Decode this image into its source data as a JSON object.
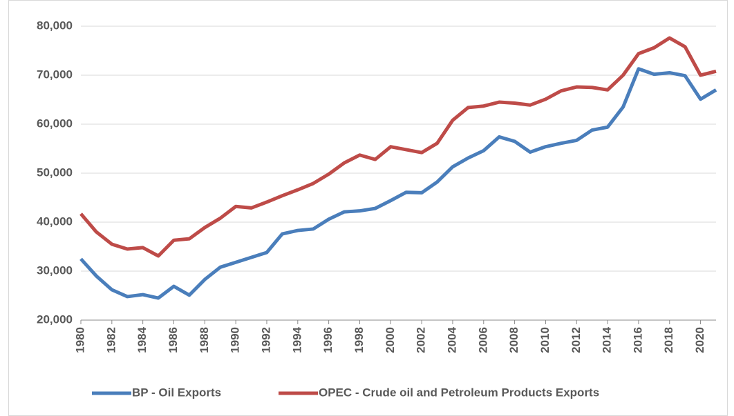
{
  "chart_data": {
    "type": "line",
    "x": [
      1980,
      1981,
      1982,
      1983,
      1984,
      1985,
      1986,
      1987,
      1988,
      1989,
      1990,
      1991,
      1992,
      1993,
      1994,
      1995,
      1996,
      1997,
      1998,
      1999,
      2000,
      2001,
      2002,
      2003,
      2004,
      2005,
      2006,
      2007,
      2008,
      2009,
      2010,
      2011,
      2012,
      2013,
      2014,
      2015,
      2016,
      2017,
      2018,
      2019,
      2020,
      2021
    ],
    "series": [
      {
        "name": "BP - Oil Exports",
        "color": "#4a7ebb",
        "values": [
          32500,
          29000,
          26200,
          24800,
          25200,
          24500,
          26900,
          25100,
          28300,
          30800,
          31800,
          32800,
          33800,
          37600,
          38300,
          38600,
          40600,
          42100,
          42300,
          42800,
          44400,
          46100,
          46000,
          48200,
          51300,
          53100,
          54600,
          57400,
          56500,
          54300,
          55400,
          56100,
          56700,
          58800,
          59400,
          63500,
          71300,
          70200,
          70500,
          69900,
          65100,
          67000
        ]
      },
      {
        "name": "OPEC - Crude oil and Petroleum Products Exports",
        "color": "#be4b48",
        "values": [
          41700,
          38000,
          35500,
          34500,
          34800,
          33100,
          36300,
          36600,
          38900,
          40800,
          43200,
          42900,
          44100,
          45400,
          46600,
          47900,
          49800,
          52100,
          53700,
          52800,
          55400,
          54800,
          54200,
          56100,
          60800,
          63400,
          63700,
          64500,
          64300,
          63900,
          65100,
          66800,
          67600,
          67500,
          67000,
          70000,
          74400,
          75600,
          77600,
          75800,
          70000,
          70800
        ]
      }
    ],
    "xlim": [
      1980,
      2021
    ],
    "xticks": [
      1980,
      1982,
      1984,
      1986,
      1988,
      1990,
      1992,
      1994,
      1996,
      1998,
      2000,
      2002,
      2004,
      2006,
      2008,
      2010,
      2012,
      2014,
      2016,
      2018,
      2020
    ],
    "ylim": [
      20000,
      80000
    ],
    "yticks": [
      {
        "value": 20000,
        "label": "20,000"
      },
      {
        "value": 30000,
        "label": "30,000"
      },
      {
        "value": 40000,
        "label": "40,000"
      },
      {
        "value": 50000,
        "label": "50,000"
      },
      {
        "value": 60000,
        "label": "60,000"
      },
      {
        "value": 70000,
        "label": "70,000"
      },
      {
        "value": 80000,
        "label": "80,000"
      }
    ],
    "grid": true,
    "legend": "bottom"
  }
}
